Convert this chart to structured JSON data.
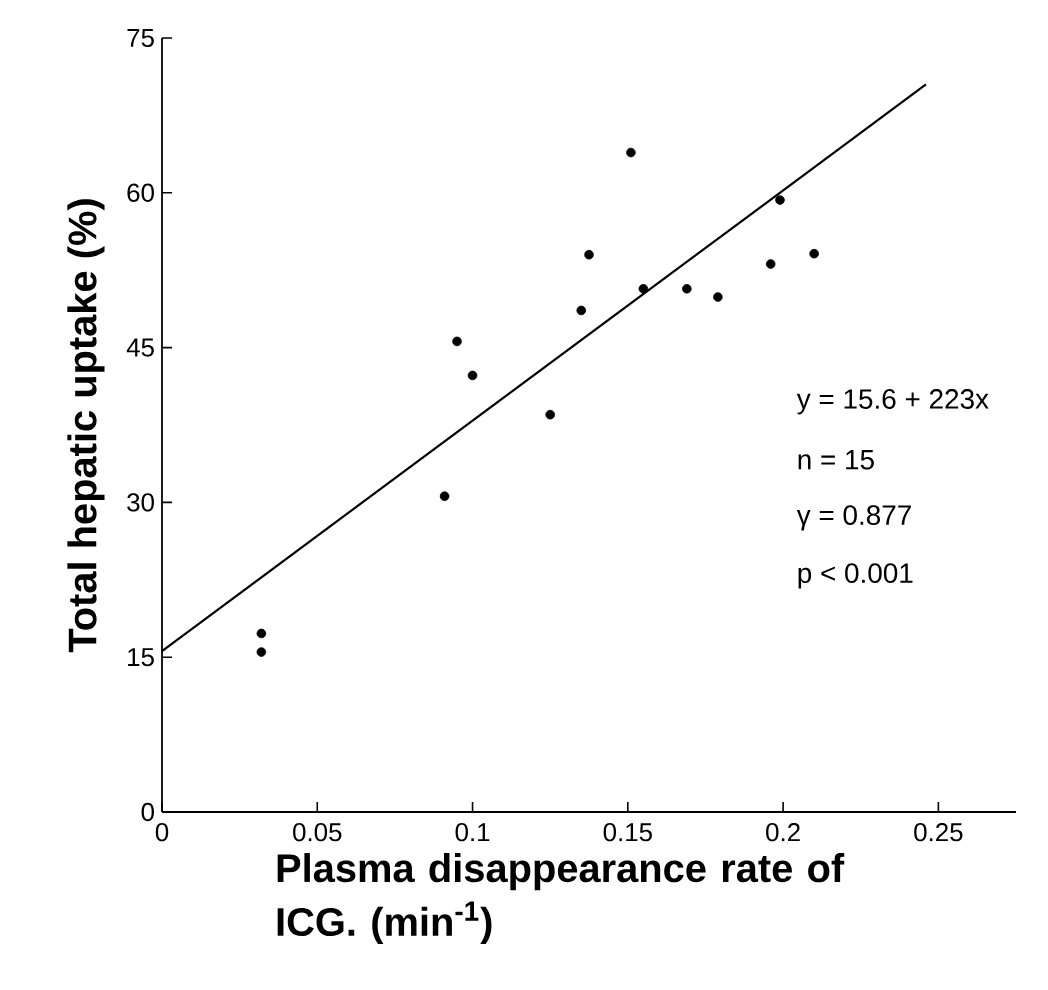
{
  "chart_data": {
    "type": "scatter",
    "xlabel": "Plasma disappearance rate of ICG. (min$^{-1}$)",
    "ylabel": "Total hepatic uptake (%)",
    "xlim": [
      0,
      0.275
    ],
    "ylim": [
      0,
      75
    ],
    "xticks": [
      0,
      0.05,
      0.1,
      0.15,
      0.2,
      0.25
    ],
    "yticks": [
      0,
      15,
      30,
      45,
      60,
      75
    ],
    "grid": false,
    "series": [
      {
        "color": "#000000",
        "marker": "circle",
        "x": [
          0.032,
          0.032,
          0.091,
          0.095,
          0.1,
          0.125,
          0.135,
          0.1375,
          0.151,
          0.155,
          0.169,
          0.179,
          0.196,
          0.199,
          0.21
        ],
        "values": [
          15.5,
          17.3,
          30.6,
          45.6,
          42.3,
          38.5,
          48.6,
          54.0,
          63.9,
          50.7,
          50.7,
          49.9,
          53.1,
          59.3,
          54.1
        ]
      },
      {
        "type": "line",
        "color": "#000000",
        "marker": "none",
        "line_style": "solid",
        "x": [
          0,
          0.246
        ],
        "values": [
          15.6,
          70.5
        ]
      }
    ],
    "annotations": [
      "y = 15.6 + 223x",
      "n = 15",
      "γ = 0.877",
      "p < 0.001"
    ]
  }
}
